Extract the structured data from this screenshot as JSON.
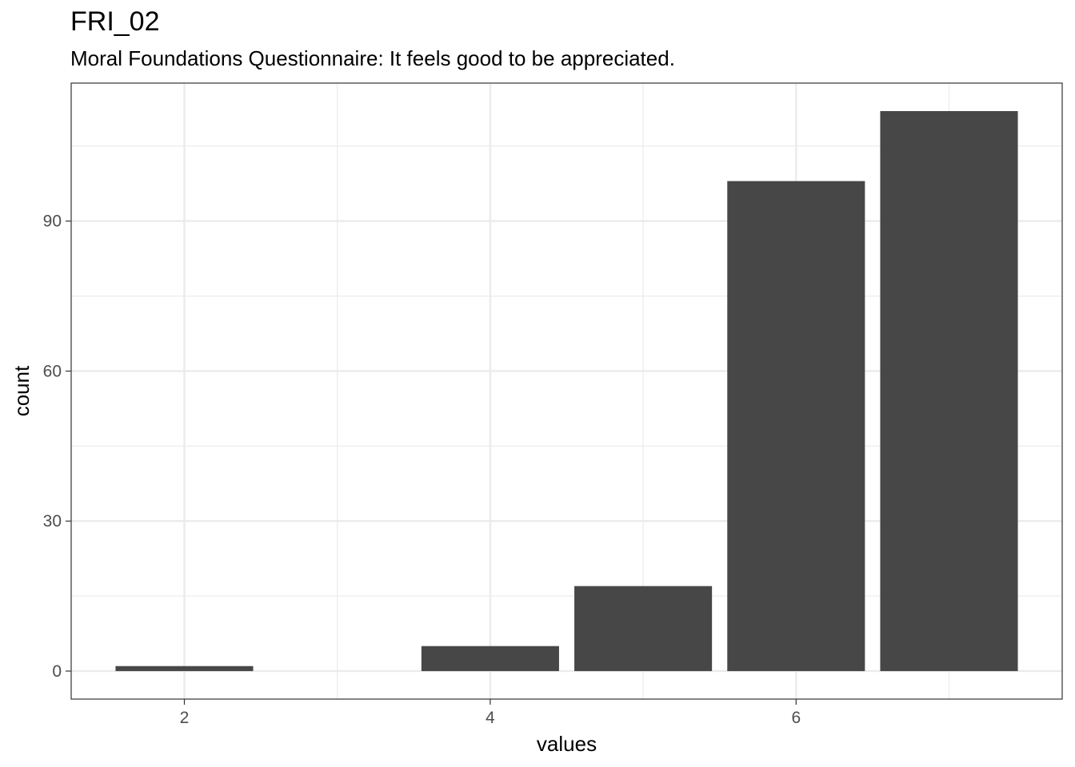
{
  "title": "FRI_02",
  "subtitle": "Moral Foundations Questionnaire: It feels good to be appreciated.",
  "chart_data": {
    "type": "bar",
    "xlabel": "values",
    "ylabel": "count",
    "x": [
      2,
      4,
      5,
      6,
      7
    ],
    "values": [
      1,
      5,
      17,
      98,
      112
    ],
    "xlim": [
      1.26,
      7.74
    ],
    "ylim": [
      -5.6,
      117.6
    ],
    "xticks": [
      2,
      4,
      6
    ],
    "yticks": [
      0,
      30,
      60,
      90
    ],
    "grid": true,
    "bar_color": "#474747",
    "grid_color": "#ebebeb"
  }
}
